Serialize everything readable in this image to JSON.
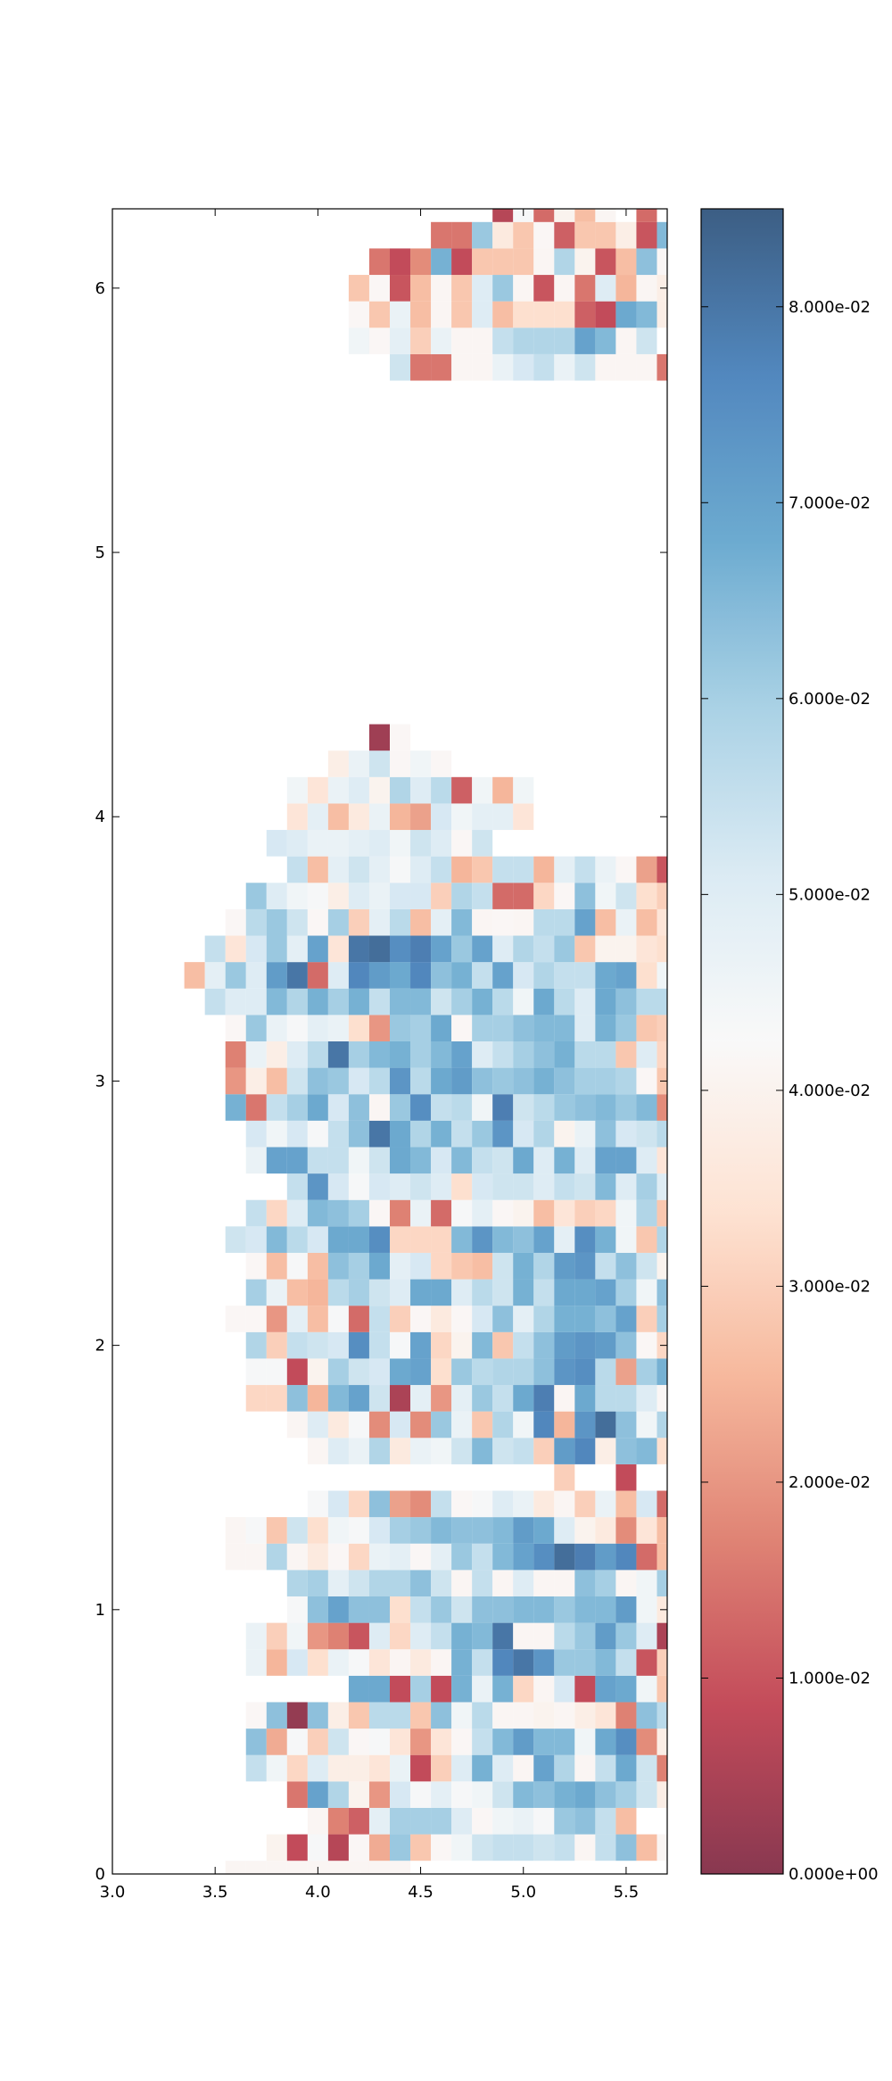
{
  "chart_data": {
    "type": "heatmap",
    "title": "",
    "xlabel": "",
    "ylabel": "",
    "xlim": [
      3.0,
      5.7
    ],
    "ylim": [
      0.0,
      6.3
    ],
    "x_ticks": [
      3.0,
      3.5,
      4.0,
      4.5,
      5.0,
      5.5
    ],
    "x_tick_labels": [
      "3.0",
      "3.5",
      "4.0",
      "4.5",
      "5.0",
      "5.5"
    ],
    "y_ticks": [
      0,
      1,
      2,
      3,
      4,
      5,
      6
    ],
    "y_tick_labels": [
      "0",
      "1",
      "2",
      "3",
      "4",
      "5",
      "6"
    ],
    "grid": false,
    "cell_width": 0.1,
    "cell_height": 0.1,
    "colormap": "RdBu",
    "colormap_stops": [
      "#67001f",
      "#b2182b",
      "#d6604d",
      "#f4a582",
      "#fddbc7",
      "#f7f7f7",
      "#d1e5f0",
      "#92c5de",
      "#4393c3",
      "#2166ac",
      "#053061"
    ],
    "cell_opacity": 0.78,
    "colorbar": {
      "min": 0.0,
      "max": 0.085,
      "ticks": [
        0.0,
        0.01,
        0.02,
        0.03,
        0.04,
        0.05,
        0.06,
        0.07,
        0.08
      ],
      "tick_labels": [
        "0.000e+00",
        "1.000e-02",
        "2.000e-02",
        "3.000e-02",
        "4.000e-02",
        "5.000e-02",
        "6.000e-02",
        "7.000e-02",
        "8.000e-02"
      ]
    },
    "upper_region": {
      "x_start": 3.95,
      "y_start": 5.65,
      "rows": [
        "    gJJ..cfhcg...J",
        "  bZdSc..hjjjqn.g ",
        "  ZRcQ.ReQUUUHFpnX",
        "  RZGQ.Rel.G.JeP.X",
        "   JFLoFRRR.jYGQmZ",
        "      JJlWRZHRRXGn",
        "         EaIYQ. I "
      ],
      "row_order": "bottom-to-top"
    },
    "lower_region": {
      "x_start": 2.95,
      "y_start": -0.05,
      "rows": [
        "      .........                 ",
        "        YFaEZOlRZbghhgh.hmQ.     ",
        "          .KHdkkkeZbcalmhQ      ",
        "         JqjYMfadabgnmopmkgXR   ",
        "       hbTeXXVcFSeoe.qj.hpgKDF  ",
        "       mOaSgZaVMVZhnrnnbptLXcR  ",
        "       ZmBmXRiiRmbi..Y.XVKmiV   ",
        "            ppFkFocoT.fFqpbRRR  ",
        "       cPfUcaV.W.ohuwsllnhGSp   ",
        "       cSbMKGeTehonw..ilrleDZp  ",
        "         amqmmUhlgmmnnlnnrbWcIc ",
        "         jkdgjjmg.h.e..mk.bkgI  ",
        "      ..j.WZTcdZdlhnqtxvruIQZ   ",
        "      .aRgUbafklnmmnrpeYWLVQ    ",
        "          afTmNLhZaecW.ScQfI    ",
        "                      S  F      ",
        "          .ecjWcbgnghSruXmnUSR  ",
        "         .eWaLfLlcRjbuPsxmbjXI  ",
        "       TTmPnqgDdMdlhpv.piieZZfg ",
        "       aaFYkgfpqUlijjmstiNkoeea ",
        "       jShgfthaqTYnRhmrsrmZTVTI ",
        "      ZZMdQaIhSZWZfmdjoomqSkUZd ",
        "       kcQPikgeppeigohppqkbmUFh ",
        "       ZQaQmkpdfTRQgojrshmgYbRVW",
        "      gfnifpptTTTnsnmqdtobRjXh  ",
        "       hTenmkZKcIadZYQVSTbjRi   ",
        "         hsfafegeUfggehgnekeS   ",
        "       cqqhhbgpnfnhgpeoeqqeVNmd ",
        "       fbfahmwpjohlsfjYcmfgijQmh",
        "      oJhkpfm.lthibvgilmnlnLpU  ",
        "      MXQgmlfisiprmlmomkkjZRh   ",
        "      KcXeiwknoknqehkmoiiReTVeXd",
        "      ZlcadcUMlkpZkkmnneolRSh   ",
        "     heenjokohnngkoibpiepmiijVh ",
        "    QdlerwIeurpumohqfjhhpqUbk.V",
        "     hVfldqVwxtvqlqejhlRYYVUmh  ",
        "      ZilgZkSdiQdn.Z.iiqQcQVS   ",
        "       lebaXecffSjhIITZmbgUSZ   ",
        "         hQdgdaehPRhhPdhcZNGQ   ",
        "        feccdebgeZg             ",
        "         VdQWcPNfbddV           ",
        "         bVceYjeiHbPb           ",
        "           XcgZbZ               ",
        "             CZ                 "
      ],
      "row_order": "bottom-to-top"
    }
  }
}
